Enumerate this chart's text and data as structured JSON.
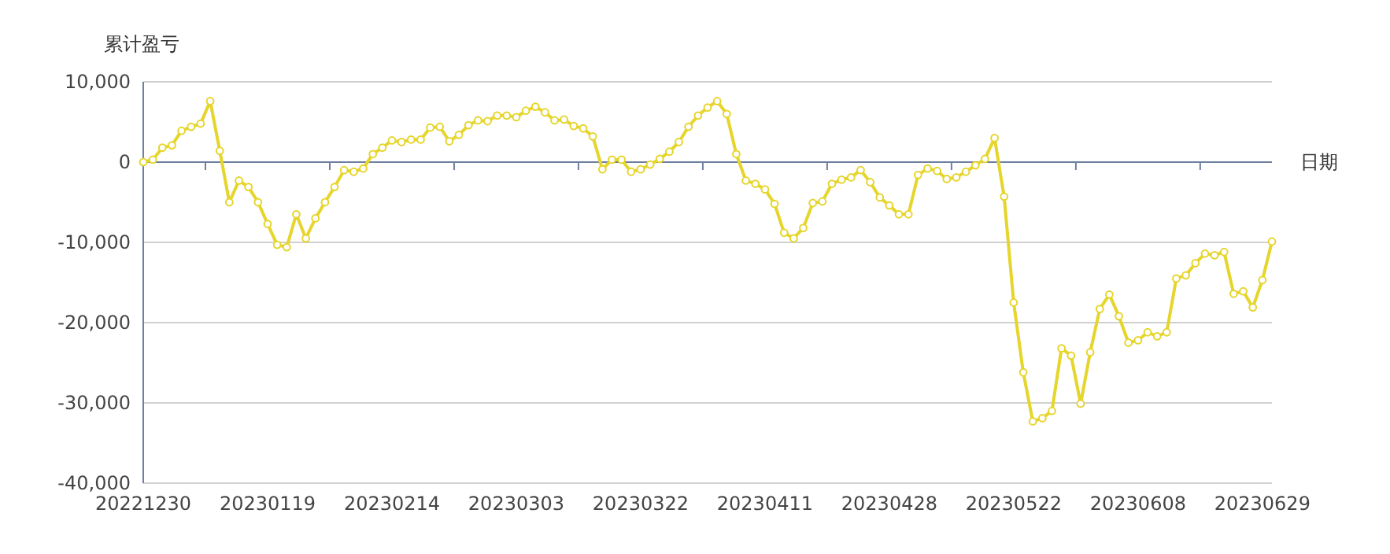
{
  "chart_data": {
    "type": "line",
    "ylabel": "累计盈亏",
    "xlabel": "日期",
    "categories": [
      "20221230",
      null,
      null,
      null,
      null,
      null,
      null,
      null,
      null,
      null,
      null,
      null,
      null,
      "20230119",
      null,
      null,
      null,
      null,
      null,
      null,
      null,
      null,
      null,
      null,
      null,
      null,
      "20230214",
      null,
      null,
      null,
      null,
      null,
      null,
      null,
      null,
      null,
      null,
      null,
      null,
      "20230303",
      null,
      null,
      null,
      null,
      null,
      null,
      null,
      null,
      null,
      null,
      null,
      null,
      "20230322",
      null,
      null,
      null,
      null,
      null,
      null,
      null,
      null,
      null,
      null,
      null,
      null,
      "20230411",
      null,
      null,
      null,
      null,
      null,
      null,
      null,
      null,
      null,
      null,
      null,
      null,
      "20230428",
      null,
      null,
      null,
      null,
      null,
      null,
      null,
      null,
      null,
      null,
      null,
      null,
      "20230522",
      null,
      null,
      null,
      null,
      null,
      null,
      null,
      null,
      null,
      null,
      null,
      null,
      "20230608",
      null,
      null,
      null,
      null,
      null,
      null,
      null,
      null,
      null,
      null,
      null,
      null,
      "20230629",
      null
    ],
    "series": [
      {
        "color": "#e6d52b",
        "values": [
          0,
          300,
          1800,
          2100,
          3900,
          4400,
          4800,
          7600,
          1400,
          -5000,
          -2300,
          -3100,
          -5000,
          -7700,
          -10300,
          -10600,
          -6500,
          -9500,
          -7000,
          -5000,
          -3100,
          -1000,
          -1200,
          -800,
          1000,
          1800,
          2700,
          2500,
          2800,
          2800,
          4300,
          4400,
          2600,
          3400,
          4600,
          5200,
          5100,
          5800,
          5800,
          5600,
          6400,
          6900,
          6200,
          5200,
          5300,
          4500,
          4200,
          3200,
          -900,
          300,
          300,
          -1200,
          -900,
          -300,
          400,
          1300,
          2500,
          4400,
          5800,
          6800,
          7600,
          6000,
          1000,
          -2300,
          -2700,
          -3400,
          -5200,
          -8800,
          -9500,
          -8200,
          -5100,
          -4900,
          -2700,
          -2200,
          -1900,
          -1000,
          -2500,
          -4400,
          -5400,
          -6500,
          -6500,
          -1600,
          -800,
          -1100,
          -2100,
          -1900,
          -1200,
          -400,
          400,
          3000,
          -4300,
          -17500,
          -26200,
          -32300,
          -31900,
          -31000,
          -23200,
          -24100,
          -30100,
          -23700,
          -18300,
          -16500,
          -19200,
          -22500,
          -22200,
          -21200,
          -21700,
          -21200,
          -14500,
          -14100,
          -12600,
          -11400,
          -11600,
          -11200,
          -16400,
          -16100,
          -18100,
          -14700,
          -9900
        ]
      }
    ],
    "ylim": [
      -40000,
      10000
    ],
    "yticks": [
      {
        "value": -40000,
        "label": "-40,000"
      },
      {
        "value": -30000,
        "label": "-30,000"
      },
      {
        "value": -20000,
        "label": "-20,000"
      },
      {
        "value": -10000,
        "label": "-10,000"
      },
      {
        "value": 0,
        "label": "0"
      },
      {
        "value": 10000,
        "label": "10,000"
      }
    ],
    "grid": "y",
    "marker": "circle",
    "line_style": "solid",
    "ref_lines": [
      {
        "axis": "y",
        "value": 0,
        "color": "#6e7f9f"
      }
    ]
  }
}
